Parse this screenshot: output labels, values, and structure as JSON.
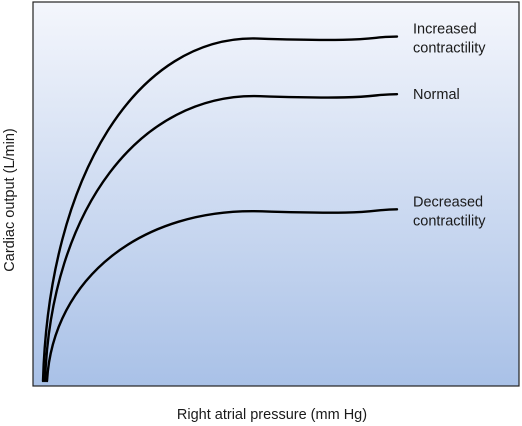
{
  "chart_data": {
    "type": "line",
    "title": "",
    "xlabel": "Right atrial pressure (mm Hg)",
    "ylabel": "Cardiac output (L/min)",
    "xticks": "none",
    "yticks": "none",
    "grid": false,
    "background_gradient": [
      "#f4f6fc",
      "#a9c1e7"
    ],
    "curve_color": "#000000",
    "series": [
      {
        "name": "Increased contractility",
        "label_lines": [
          "Increased",
          "contractility"
        ],
        "plateau_level": 0.91
      },
      {
        "name": "Normal",
        "label_lines": [
          "Normal"
        ],
        "plateau_level": 0.76
      },
      {
        "name": "Decreased contractility",
        "label_lines": [
          "Decreased",
          "contractility"
        ],
        "plateau_level": 0.46
      }
    ]
  }
}
